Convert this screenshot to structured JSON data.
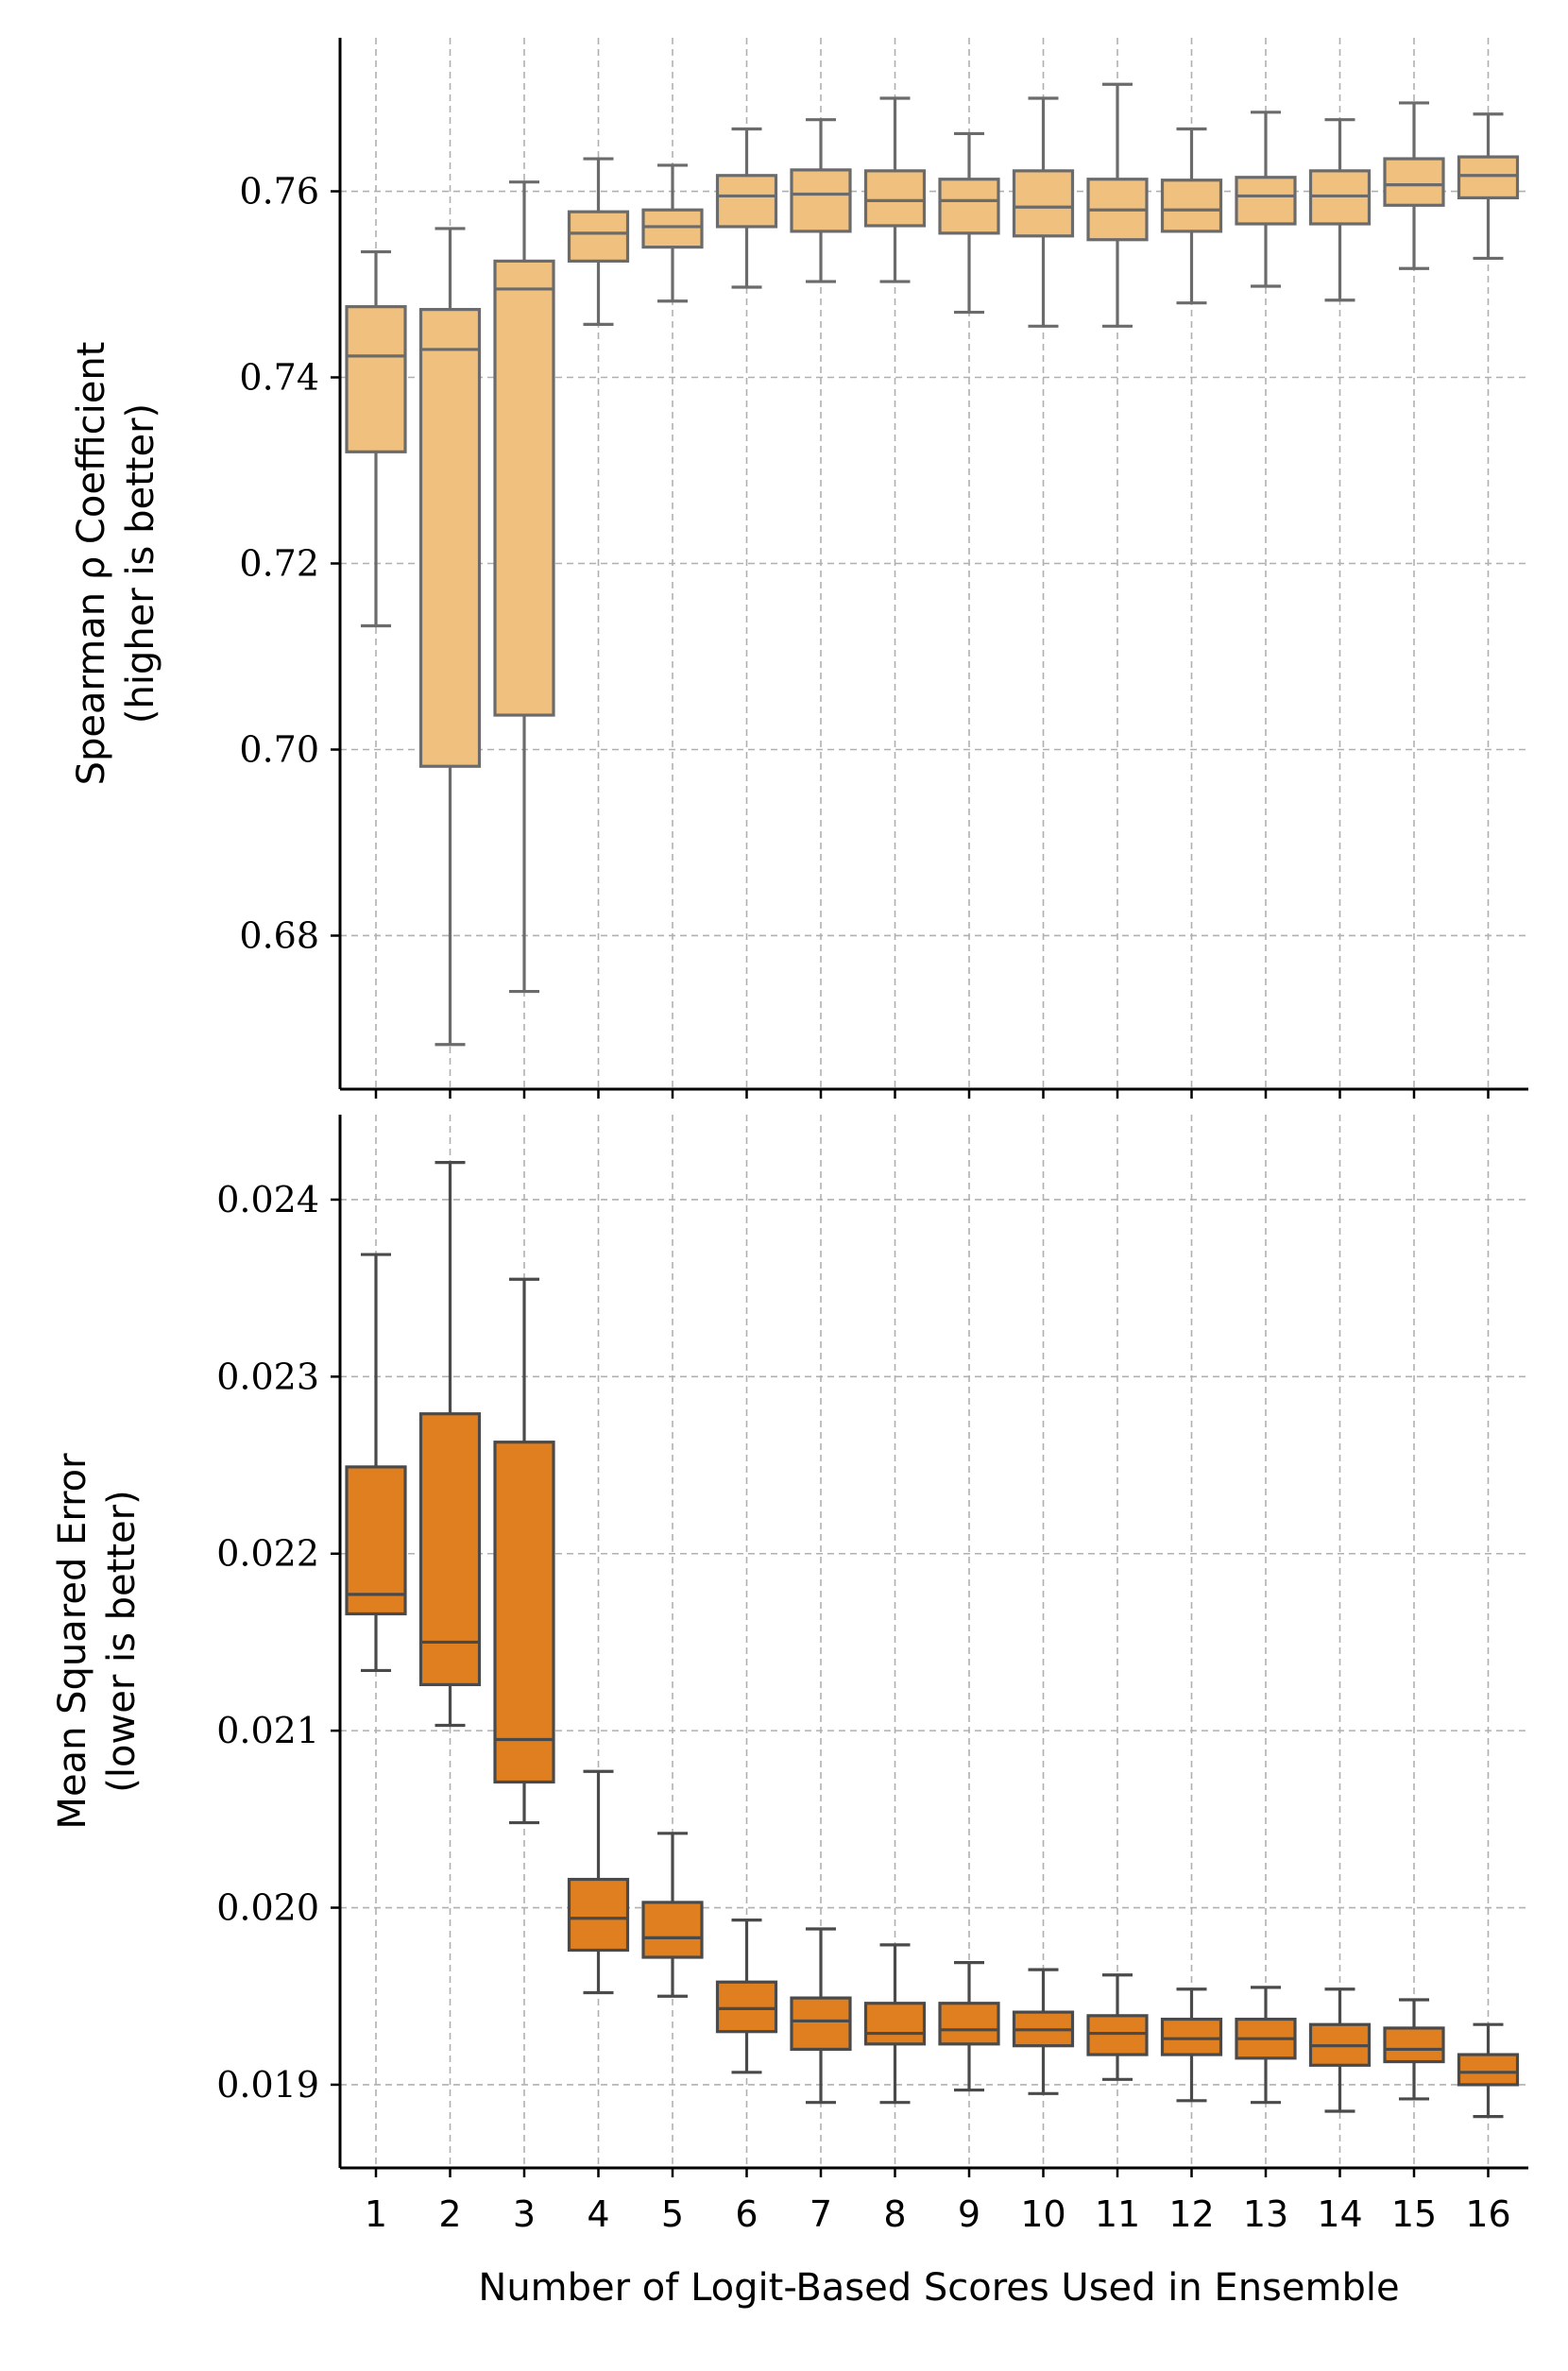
{
  "chart_data": [
    {
      "type": "box",
      "title": "",
      "ylabel_line1": "Spearman ρ Coefficient",
      "ylabel_line2": "(higher is better)",
      "xlabel": "",
      "ylim": [
        0.6635,
        0.7765
      ],
      "yticks": [
        0.68,
        0.7,
        0.72,
        0.74,
        0.76
      ],
      "ytick_labels": [
        "0.68",
        "0.70",
        "0.72",
        "0.74",
        "0.76"
      ],
      "box_color": "#f0c07f",
      "edge_color": "#6b6b6b",
      "categories": [
        "1",
        "2",
        "3",
        "4",
        "5",
        "6",
        "7",
        "8",
        "9",
        "10",
        "11",
        "12",
        "13",
        "14",
        "15",
        "16"
      ],
      "boxes": [
        {
          "whisker_low": 0.7133,
          "q1": 0.732,
          "median": 0.7423,
          "q3": 0.7476,
          "whisker_high": 0.7535
        },
        {
          "whisker_low": 0.6683,
          "q1": 0.6982,
          "median": 0.743,
          "q3": 0.7473,
          "whisker_high": 0.756
        },
        {
          "whisker_low": 0.674,
          "q1": 0.7037,
          "median": 0.7495,
          "q3": 0.7525,
          "whisker_high": 0.761
        },
        {
          "whisker_low": 0.7457,
          "q1": 0.7525,
          "median": 0.7555,
          "q3": 0.7578,
          "whisker_high": 0.7635
        },
        {
          "whisker_low": 0.7482,
          "q1": 0.754,
          "median": 0.7562,
          "q3": 0.758,
          "whisker_high": 0.7628
        },
        {
          "whisker_low": 0.7497,
          "q1": 0.7562,
          "median": 0.7595,
          "q3": 0.7617,
          "whisker_high": 0.7667
        },
        {
          "whisker_low": 0.7503,
          "q1": 0.7557,
          "median": 0.7597,
          "q3": 0.7623,
          "whisker_high": 0.7677
        },
        {
          "whisker_low": 0.7503,
          "q1": 0.7563,
          "median": 0.759,
          "q3": 0.7622,
          "whisker_high": 0.77
        },
        {
          "whisker_low": 0.747,
          "q1": 0.7555,
          "median": 0.759,
          "q3": 0.7613,
          "whisker_high": 0.7662
        },
        {
          "whisker_low": 0.7455,
          "q1": 0.7552,
          "median": 0.7583,
          "q3": 0.7622,
          "whisker_high": 0.77
        },
        {
          "whisker_low": 0.7455,
          "q1": 0.7548,
          "median": 0.758,
          "q3": 0.7613,
          "whisker_high": 0.7715
        },
        {
          "whisker_low": 0.748,
          "q1": 0.7557,
          "median": 0.758,
          "q3": 0.7612,
          "whisker_high": 0.7667
        },
        {
          "whisker_low": 0.7498,
          "q1": 0.7565,
          "median": 0.7595,
          "q3": 0.7615,
          "whisker_high": 0.7685
        },
        {
          "whisker_low": 0.7483,
          "q1": 0.7565,
          "median": 0.7595,
          "q3": 0.7622,
          "whisker_high": 0.7677
        },
        {
          "whisker_low": 0.7517,
          "q1": 0.7585,
          "median": 0.7607,
          "q3": 0.7635,
          "whisker_high": 0.7695
        },
        {
          "whisker_low": 0.7528,
          "q1": 0.7593,
          "median": 0.7617,
          "q3": 0.7637,
          "whisker_high": 0.7683
        }
      ]
    },
    {
      "type": "box",
      "title": "",
      "ylabel_line1": "Mean Squared Error",
      "ylabel_line2": "(lower is better)",
      "xlabel": "Number of Logit-Based Scores Used in Ensemble",
      "ylim": [
        0.01853,
        0.02448
      ],
      "yticks": [
        0.019,
        0.02,
        0.021,
        0.022,
        0.023,
        0.024
      ],
      "ytick_labels": [
        "0.019",
        "0.020",
        "0.021",
        "0.022",
        "0.023",
        "0.024"
      ],
      "box_color": "#e07f20",
      "edge_color": "#4a4a4a",
      "categories": [
        "1",
        "2",
        "3",
        "4",
        "5",
        "6",
        "7",
        "8",
        "9",
        "10",
        "11",
        "12",
        "13",
        "14",
        "15",
        "16"
      ],
      "boxes": [
        {
          "whisker_low": 0.02134,
          "q1": 0.02166,
          "median": 0.02177,
          "q3": 0.02249,
          "whisker_high": 0.02369
        },
        {
          "whisker_low": 0.02103,
          "q1": 0.02126,
          "median": 0.0215,
          "q3": 0.02279,
          "whisker_high": 0.02421
        },
        {
          "whisker_low": 0.02048,
          "q1": 0.02071,
          "median": 0.02095,
          "q3": 0.02263,
          "whisker_high": 0.02355
        },
        {
          "whisker_low": 0.01952,
          "q1": 0.01976,
          "median": 0.01994,
          "q3": 0.02016,
          "whisker_high": 0.02077
        },
        {
          "whisker_low": 0.0195,
          "q1": 0.01972,
          "median": 0.01983,
          "q3": 0.02003,
          "whisker_high": 0.02042
        },
        {
          "whisker_low": 0.01907,
          "q1": 0.0193,
          "median": 0.01943,
          "q3": 0.01958,
          "whisker_high": 0.01993
        },
        {
          "whisker_low": 0.0189,
          "q1": 0.0192,
          "median": 0.01936,
          "q3": 0.01949,
          "whisker_high": 0.01988
        },
        {
          "whisker_low": 0.0189,
          "q1": 0.01923,
          "median": 0.01929,
          "q3": 0.01946,
          "whisker_high": 0.01979
        },
        {
          "whisker_low": 0.01897,
          "q1": 0.01923,
          "median": 0.01931,
          "q3": 0.01946,
          "whisker_high": 0.01969
        },
        {
          "whisker_low": 0.01895,
          "q1": 0.01922,
          "median": 0.01931,
          "q3": 0.01941,
          "whisker_high": 0.01965
        },
        {
          "whisker_low": 0.01903,
          "q1": 0.01917,
          "median": 0.01929,
          "q3": 0.01939,
          "whisker_high": 0.01962
        },
        {
          "whisker_low": 0.01891,
          "q1": 0.01917,
          "median": 0.01926,
          "q3": 0.01937,
          "whisker_high": 0.01954
        },
        {
          "whisker_low": 0.0189,
          "q1": 0.01915,
          "median": 0.01926,
          "q3": 0.01937,
          "whisker_high": 0.01955
        },
        {
          "whisker_low": 0.01885,
          "q1": 0.01911,
          "median": 0.01922,
          "q3": 0.01934,
          "whisker_high": 0.01954
        },
        {
          "whisker_low": 0.01892,
          "q1": 0.01913,
          "median": 0.0192,
          "q3": 0.01932,
          "whisker_high": 0.01948
        },
        {
          "whisker_low": 0.01882,
          "q1": 0.019,
          "median": 0.01907,
          "q3": 0.01917,
          "whisker_high": 0.01934
        }
      ]
    }
  ]
}
